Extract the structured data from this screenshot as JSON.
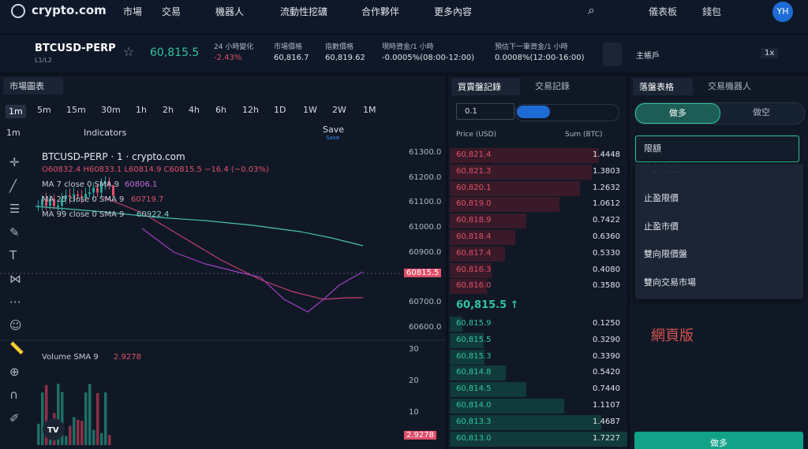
{
  "nav": {
    "logo": "crypto.com",
    "menu": [
      "市場",
      "交易",
      "機器人",
      "流動性挖礦",
      "合作夥伴",
      "更多內容"
    ],
    "dashboard": "儀表板",
    "wallet": "錢包",
    "avatar": "YH"
  },
  "ticker": {
    "symbol": "BTCUSD-PERP",
    "sub": "L1/L2",
    "price": "60,815.5",
    "stats": [
      {
        "label": "24 小時變化",
        "value": "-2.43%"
      },
      {
        "label": "市場價格",
        "value": "60,816.7"
      },
      {
        "label": "指數價格",
        "value": "60,819.62"
      },
      {
        "label": "現時資金/1 小時",
        "value": "-0.0005%(08:00-12:00)"
      },
      {
        "label": "預估下一筆資金/1 小時",
        "value": "0.0008%(12:00-16:00)"
      }
    ],
    "account": "主帳戶",
    "leverage": "1x"
  },
  "chart_panel": {
    "tab": "市場圖表",
    "intervals": [
      "1m",
      "5m",
      "15m",
      "30m",
      "1h",
      "2h",
      "4h",
      "6h",
      "12h",
      "1D",
      "1W",
      "2W",
      "1M"
    ],
    "toolbar": {
      "interval": "1m",
      "indicators": "Indicators",
      "save": "Save",
      "save_sub": "Save"
    },
    "legend": {
      "title": "BTCUSD-PERP · 1 · crypto.com",
      "ohlc": "O60832.4 H60833.1 L60814.9 C60815.5 −16.4 (−0.03%)",
      "ma": [
        {
          "label": "MA 7 close 0 SMA 9",
          "value": "60806.1"
        },
        {
          "label": "MA 25 close 0 SMA 9",
          "value": "60719.7"
        },
        {
          "label": "MA 99 close 0 SMA 9",
          "value": "60922.4"
        }
      ]
    },
    "price_ticks": [
      "61300.0",
      "61200.0",
      "61100.0",
      "61000.0",
      "60900.0",
      "60700.0",
      "60600.0"
    ],
    "last_price": "60815.5",
    "volume": {
      "label": "Volume SMA 9",
      "value": "2.9278",
      "ticks": [
        "30",
        "20",
        "10"
      ],
      "last": "2.9278"
    }
  },
  "order_book": {
    "tabs": [
      "買賣盤記錄",
      "交易記錄"
    ],
    "step": "0.1",
    "headers": [
      "Price (USD)",
      "Sum (BTC)"
    ],
    "asks": [
      {
        "price": "60,821.4",
        "sum": "1.4448"
      },
      {
        "price": "60,821.3",
        "sum": "1.3803"
      },
      {
        "price": "60,820.1",
        "sum": "1.2632"
      },
      {
        "price": "60,819.0",
        "sum": "1.0612"
      },
      {
        "price": "60,818.9",
        "sum": "0.7422"
      },
      {
        "price": "60,818.4",
        "sum": "0.6360"
      },
      {
        "price": "60,817.4",
        "sum": "0.5330"
      },
      {
        "price": "60,816.3",
        "sum": "0.4080"
      },
      {
        "price": "60,816.0",
        "sum": "0.3580"
      }
    ],
    "mid": "60,815.5 ↑",
    "bids": [
      {
        "price": "60,815.9",
        "sum": "0.1250"
      },
      {
        "price": "60,815.5",
        "sum": "0.3290"
      },
      {
        "price": "60,815.3",
        "sum": "0.3390"
      },
      {
        "price": "60,814.8",
        "sum": "0.5420"
      },
      {
        "price": "60,814.5",
        "sum": "0.7440"
      },
      {
        "price": "60,814.0",
        "sum": "1.1107"
      },
      {
        "price": "60,813.3",
        "sum": "1.4687"
      },
      {
        "price": "60,813.0",
        "sum": "1.7227"
      }
    ]
  },
  "order_form": {
    "tabs": [
      "落盤表格",
      "交易機器人"
    ],
    "sides": [
      "做多",
      "做空"
    ],
    "order_type": "限額",
    "options": [
      "止損市價",
      "止盈限價",
      "止盈市價",
      "雙向限價盤",
      "雙向交易市場"
    ],
    "watermark": "網頁版",
    "submit": "做多"
  }
}
